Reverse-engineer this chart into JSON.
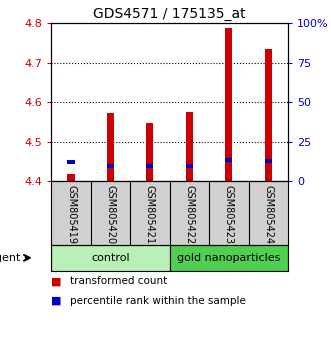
{
  "title": "GDS4571 / 175135_at",
  "samples": [
    "GSM805419",
    "GSM805420",
    "GSM805421",
    "GSM805422",
    "GSM805423",
    "GSM805424"
  ],
  "red_values": [
    4.418,
    4.572,
    4.548,
    4.575,
    4.787,
    4.735
  ],
  "blue_values": [
    4.448,
    4.438,
    4.438,
    4.44,
    4.455,
    4.452
  ],
  "ylim": [
    4.4,
    4.8
  ],
  "y2lim": [
    0,
    100
  ],
  "yticks": [
    4.4,
    4.5,
    4.6,
    4.7,
    4.8
  ],
  "y2ticks": [
    0,
    25,
    50,
    75,
    100
  ],
  "y2ticklabels": [
    "0",
    "25",
    "50",
    "75",
    "100%"
  ],
  "bar_width": 0.18,
  "bar_bottom": 4.4,
  "groups": [
    {
      "label": "control",
      "indices": [
        0,
        1,
        2
      ],
      "color": "#b8f0b8"
    },
    {
      "label": "gold nanoparticles",
      "indices": [
        3,
        4,
        5
      ],
      "color": "#50d050"
    }
  ],
  "agent_label": "agent",
  "red_color": "#cc0000",
  "blue_color": "#0000cc",
  "tick_label_color_left": "#cc0000",
  "tick_label_color_right": "#0000cc",
  "title_color": "#000000",
  "legend_items": [
    {
      "color": "#cc0000",
      "label": "transformed count"
    },
    {
      "color": "#0000cc",
      "label": "percentile rank within the sample"
    }
  ],
  "blue_bar_height": 0.01,
  "sample_bg_color": "#d0d0d0",
  "plot_bg_color": "#ffffff"
}
